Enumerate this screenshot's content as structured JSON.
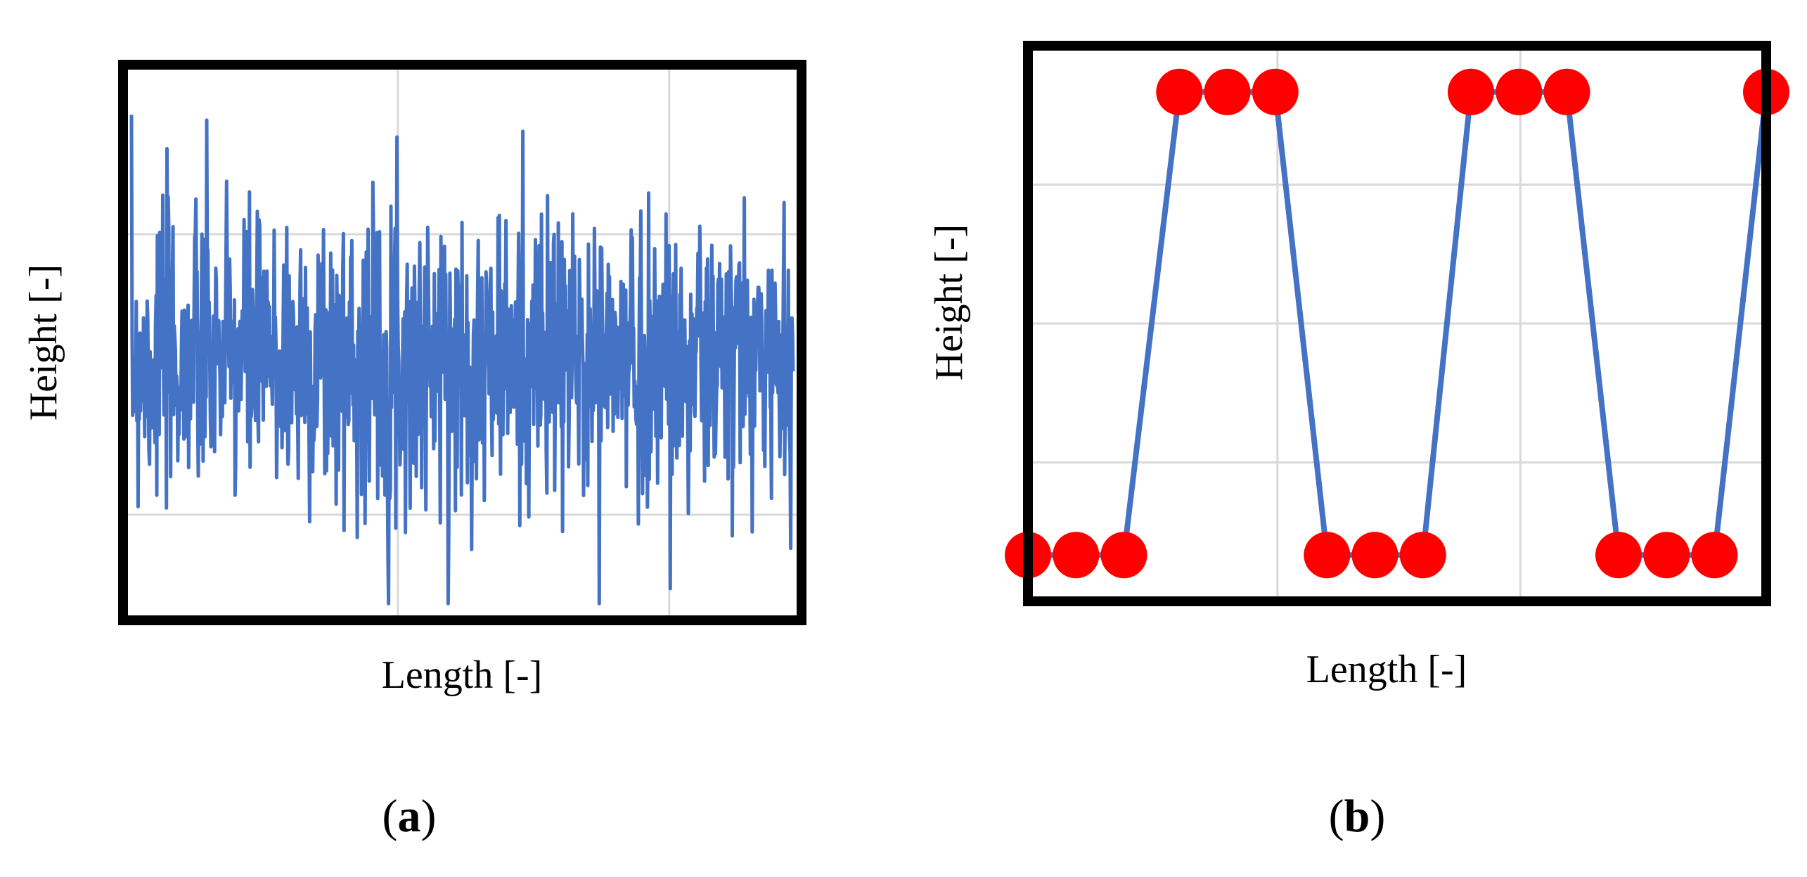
{
  "chart_data": [
    {
      "panel": "(a)",
      "panel_letter": "a",
      "type": "line",
      "xlabel": "Length  [-]",
      "ylabel": "Height  [-]",
      "grid": true,
      "tick_labels": false,
      "x_grid_count": 2,
      "y_grid_count": 2,
      "line_color": "#4472C4",
      "description_of_data": "dense random fluctuation of height along length (roughly Gaussian noise centered around 0)",
      "ylim": [
        -1,
        1
      ],
      "seed": 7
    },
    {
      "panel": "(b)",
      "panel_letter": "b",
      "type": "line",
      "xlabel": "Length  [-]",
      "ylabel": "Height  [-]",
      "grid": true,
      "tick_labels": false,
      "line_color": "#4472C4",
      "marker_color": "#FF0000",
      "x": [
        0,
        1,
        2,
        3,
        4,
        5,
        6,
        7,
        8,
        9,
        10,
        11,
        12,
        13,
        14,
        15
      ],
      "y": [
        0,
        0,
        0,
        1,
        1,
        1,
        0,
        0,
        0,
        1,
        1,
        1,
        0,
        0,
        0,
        1
      ],
      "ylim": [
        -0.1,
        1.1
      ]
    }
  ],
  "labels": {
    "a_open": "(",
    "a_letter": "a",
    "a_close": ")",
    "b_open": "(",
    "b_letter": "b",
    "b_close": ")",
    "a_xlabel": "Length  [-]",
    "a_ylabel": "Height  [-]",
    "b_xlabel": "Length  [-]",
    "b_ylabel": "Height  [-]"
  }
}
